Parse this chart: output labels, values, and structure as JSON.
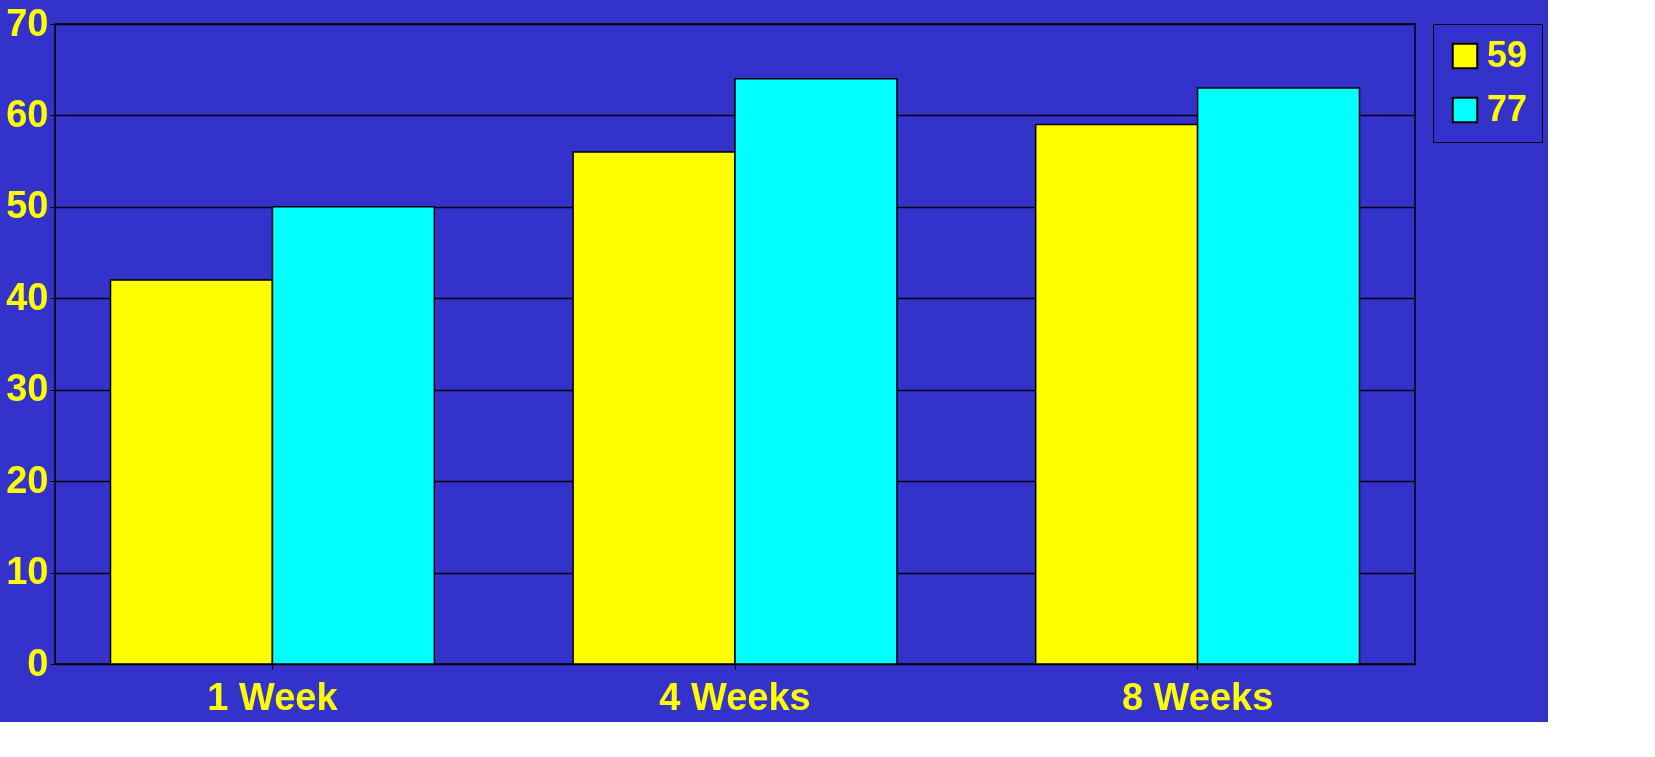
{
  "chart_data": {
    "type": "bar",
    "categories": [
      "1 Week",
      "4 Weeks",
      "8 Weeks"
    ],
    "series": [
      {
        "name": "59",
        "color": "#ffff00",
        "values": [
          42,
          56,
          59
        ]
      },
      {
        "name": "77",
        "color": "#00ffff",
        "values": [
          50,
          64,
          63
        ]
      }
    ],
    "ylim": [
      0,
      70
    ],
    "yticks": [
      0,
      10,
      20,
      30,
      40,
      50,
      60,
      70
    ],
    "grid": "y",
    "legend": "right"
  }
}
